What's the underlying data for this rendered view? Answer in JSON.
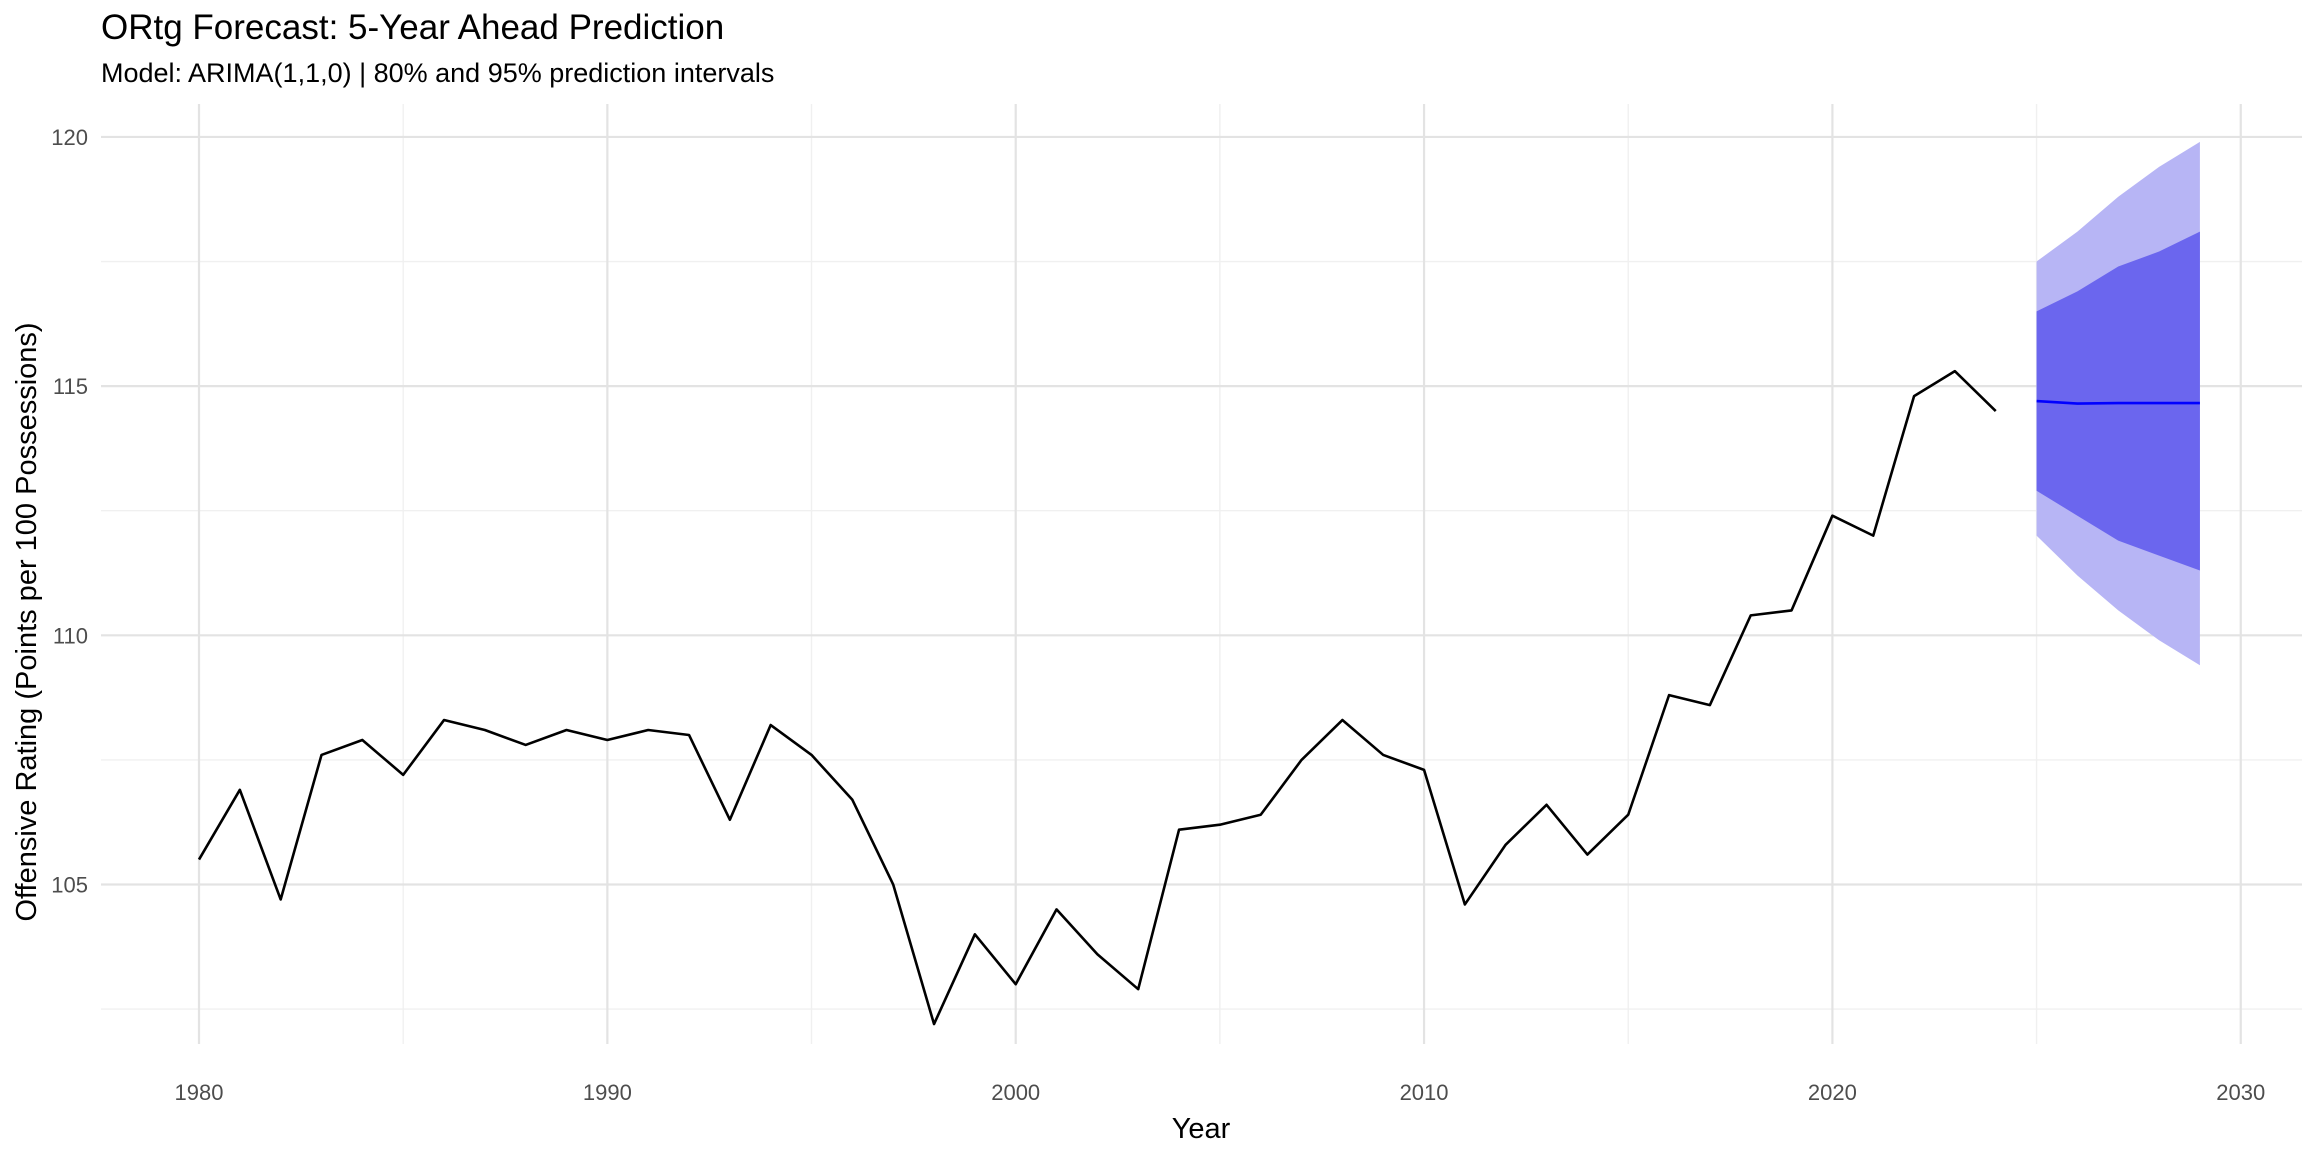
{
  "chart_data": {
    "type": "line",
    "title": "ORtg Forecast: 5-Year Ahead Prediction",
    "subtitle": "Model: ARIMA(1,1,0) | 80% and 95% prediction intervals",
    "xlabel": "Year",
    "ylabel": "Offensive Rating (Points per 100 Possessions)",
    "xlim": [
      1977.6,
      2031.5
    ],
    "ylim": [
      101.8,
      120.5
    ],
    "x_ticks": [
      1980,
      1990,
      2000,
      2010,
      2020,
      2030
    ],
    "y_ticks": [
      105,
      110,
      115,
      120
    ],
    "grid": true,
    "legend": "none",
    "colors": {
      "history": "#000000",
      "forecast": "#0000ff",
      "band80": "#6b66ee",
      "band95": "#b7b5f5"
    },
    "history": {
      "x": [
        1980,
        1981,
        1982,
        1983,
        1984,
        1985,
        1986,
        1987,
        1988,
        1989,
        1990,
        1991,
        1992,
        1993,
        1994,
        1995,
        1996,
        1997,
        1998,
        1999,
        2000,
        2001,
        2002,
        2003,
        2004,
        2005,
        2006,
        2007,
        2008,
        2009,
        2010,
        2011,
        2012,
        2013,
        2014,
        2015,
        2016,
        2017,
        2018,
        2019,
        2020,
        2021,
        2022,
        2023,
        2024
      ],
      "y": [
        105.5,
        106.9,
        104.7,
        107.6,
        107.9,
        107.2,
        108.3,
        108.1,
        107.8,
        108.1,
        107.9,
        108.1,
        108.0,
        106.3,
        108.2,
        107.6,
        106.7,
        105.0,
        102.2,
        104.0,
        103.0,
        104.5,
        103.6,
        102.9,
        106.1,
        106.2,
        106.4,
        107.5,
        108.3,
        107.6,
        107.3,
        104.6,
        105.8,
        106.6,
        105.6,
        106.4,
        108.8,
        108.6,
        110.4,
        110.5,
        112.4,
        112.0,
        114.8,
        115.3,
        114.5
      ]
    },
    "forecast": {
      "x": [
        2025,
        2026,
        2027,
        2028,
        2029
      ],
      "mean": [
        114.7,
        114.65,
        114.66,
        114.66,
        114.66
      ],
      "lo80": [
        112.9,
        112.4,
        111.9,
        111.6,
        111.3
      ],
      "hi80": [
        116.5,
        116.9,
        117.4,
        117.7,
        118.1
      ],
      "lo95": [
        112.0,
        111.2,
        110.5,
        109.9,
        109.4
      ],
      "hi95": [
        117.5,
        118.1,
        118.8,
        119.4,
        119.9
      ]
    }
  }
}
